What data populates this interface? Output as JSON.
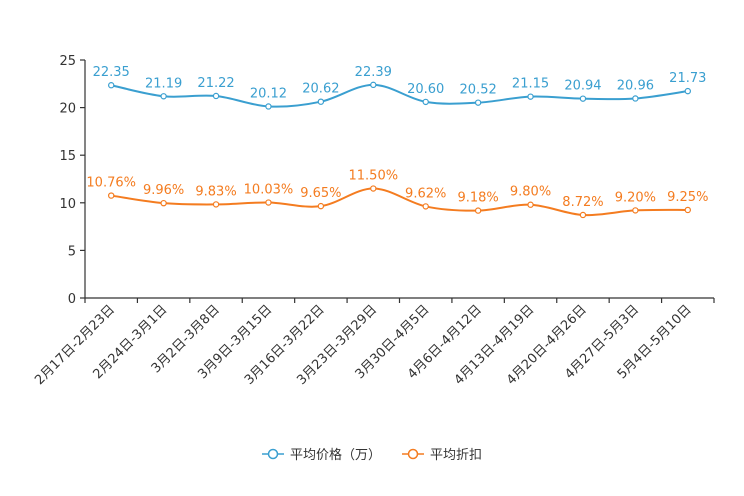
{
  "chart_data": {
    "type": "line",
    "title": "",
    "xlabel": "",
    "ylabel": "",
    "ylim": [
      0,
      25
    ],
    "yticks": [
      0,
      5,
      10,
      15,
      20,
      25
    ],
    "grid": false,
    "legend_position": "bottom-center",
    "categories": [
      "2月17日-2月23日",
      "2月24日-3月1日",
      "3月2日-3月8日",
      "3月9日-3月15日",
      "3月16日-3月22日",
      "3月23日-3月29日",
      "3月30日-4月5日",
      "4月6日-4月12日",
      "4月13日-4月19日",
      "4月20日-4月26日",
      "4月27日-5月3日",
      "5月4日-5月10日"
    ],
    "series": [
      {
        "name": "平均价格（万）",
        "color": "#3a9fd0",
        "values": [
          22.35,
          21.19,
          21.22,
          20.12,
          20.62,
          22.39,
          20.6,
          20.52,
          21.15,
          20.94,
          20.96,
          21.73
        ],
        "labels": [
          "22.35",
          "21.19",
          "21.22",
          "20.12",
          "20.62",
          "22.39",
          "20.60",
          "20.52",
          "21.15",
          "20.94",
          "20.96",
          "21.73"
        ]
      },
      {
        "name": "平均折扣",
        "color": "#f47c20",
        "values": [
          10.76,
          9.96,
          9.83,
          10.03,
          9.65,
          11.5,
          9.62,
          9.18,
          9.8,
          8.72,
          9.2,
          9.25
        ],
        "labels": [
          "10.76%",
          "9.96%",
          "9.83%",
          "10.03%",
          "9.65%",
          "11.50%",
          "9.62%",
          "9.18%",
          "9.80%",
          "8.72%",
          "9.20%",
          "9.25%"
        ]
      }
    ]
  }
}
